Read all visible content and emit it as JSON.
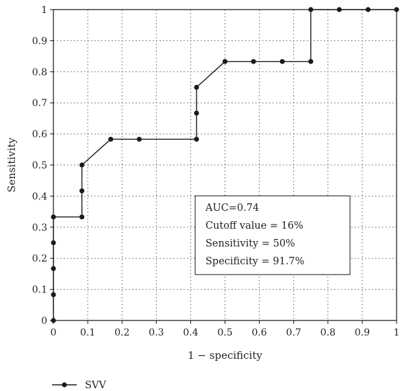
{
  "chart_data": {
    "type": "line",
    "title": "",
    "xlabel": "1 − specificity",
    "ylabel": "Sensitivity",
    "xlim": [
      0,
      1
    ],
    "ylim": [
      0,
      1
    ],
    "grid": true,
    "x_ticks": [
      "0",
      "0.1",
      "0.2",
      "0.3",
      "0.4",
      "0.5",
      "0.6",
      "0.7",
      "0.8",
      "0.9",
      "1"
    ],
    "y_ticks": [
      "0",
      "0.1",
      "0.2",
      "0.3",
      "0.4",
      "0.5",
      "0.6",
      "0.7",
      "0.8",
      "0.9",
      "1"
    ],
    "series": [
      {
        "name": "SVV",
        "color": "#1a1a1a",
        "x": [
          0,
          0,
          0,
          0,
          0,
          0.083,
          0.083,
          0.083,
          0.167,
          0.25,
          0.417,
          0.417,
          0.417,
          0.5,
          0.583,
          0.667,
          0.75,
          0.75,
          0.833,
          0.917,
          1
        ],
        "y": [
          0,
          0.083,
          0.167,
          0.25,
          0.333,
          0.333,
          0.417,
          0.5,
          0.583,
          0.583,
          0.583,
          0.667,
          0.75,
          0.833,
          0.833,
          0.833,
          0.833,
          1,
          1,
          1,
          1
        ]
      }
    ],
    "legend": {
      "position": "bottom-left"
    },
    "annotation": {
      "lines": [
        "AUC=0.74",
        "Cutoff value = 16%",
        "Sensitivity = 50%",
        "Specificity = 91.7%"
      ]
    }
  }
}
